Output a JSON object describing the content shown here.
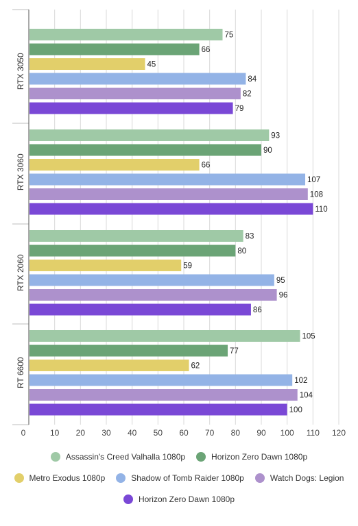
{
  "chart_data": {
    "type": "bar",
    "orientation": "horizontal",
    "categories": [
      "RTX 3050",
      "RTX 3060",
      "RTX 2060",
      "RT 6600"
    ],
    "series": [
      {
        "name": "Assassin's Creed Valhalla 1080p",
        "color": "#9fc9a6",
        "values": [
          75,
          93,
          83,
          105
        ]
      },
      {
        "name": "Horizon Zero Dawn 1080p",
        "color": "#6ba476",
        "values": [
          66,
          90,
          80,
          77
        ]
      },
      {
        "name": "Metro Exodus 1080p",
        "color": "#e2cf6a",
        "values": [
          45,
          66,
          59,
          62
        ]
      },
      {
        "name": "Shadow of Tomb Raider 1080p",
        "color": "#93b3e6",
        "values": [
          84,
          107,
          95,
          102
        ]
      },
      {
        "name": "Watch Dogs: Legion",
        "color": "#ad91cc",
        "values": [
          82,
          108,
          96,
          104
        ]
      },
      {
        "name": "Horizon Zero Dawn 1080p",
        "color": "#7a48d6",
        "values": [
          79,
          110,
          86,
          100
        ]
      }
    ],
    "xlim": [
      0,
      120
    ],
    "xticks": [
      0,
      10,
      20,
      30,
      40,
      50,
      60,
      70,
      80,
      90,
      100,
      110,
      120
    ],
    "grid": true,
    "legend_position": "bottom",
    "title": "",
    "xlabel": "",
    "ylabel": ""
  }
}
